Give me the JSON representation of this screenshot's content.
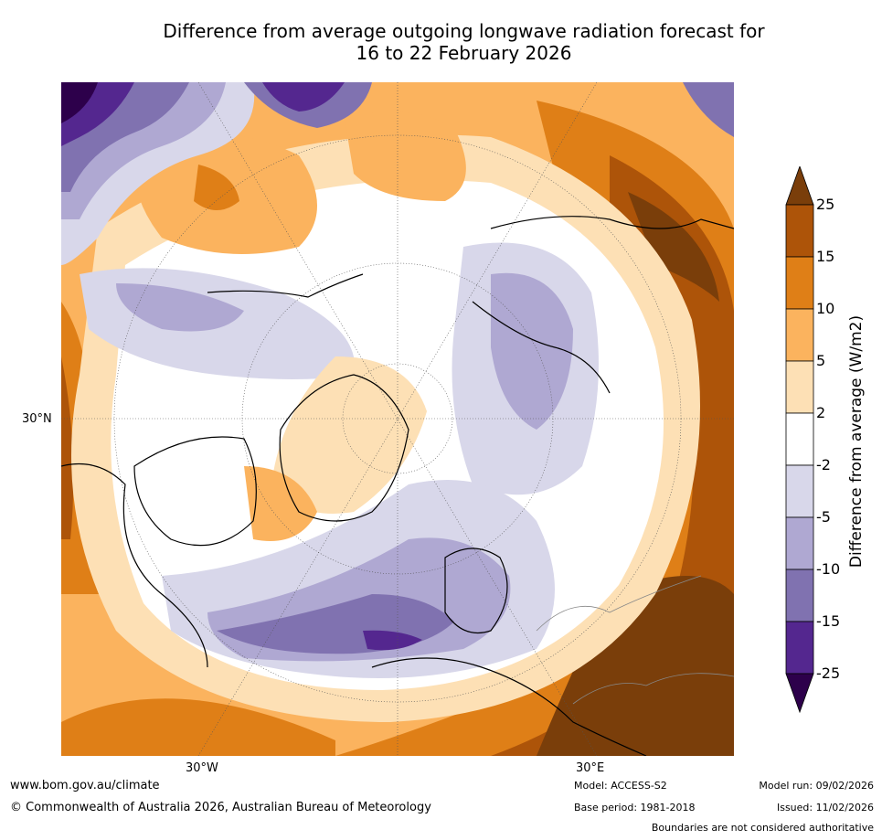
{
  "title": {
    "line1": "Difference from average outgoing longwave radiation forecast for",
    "line2": "16 to 22 February 2026"
  },
  "map": {
    "projection": "north polar stereographic",
    "lat_label": "30°N",
    "lon_labels": [
      "30°W",
      "30°E"
    ]
  },
  "colorbar": {
    "title": "Difference from average (W/m2)",
    "ticks": [
      "25",
      "15",
      "10",
      "5",
      "2",
      "-2",
      "-5",
      "-10",
      "-15",
      "-25"
    ],
    "colors": {
      "above_25": "#7a3e0a",
      "15_25": "#ad5409",
      "10_15": "#df7f17",
      "5_10": "#fbb35e",
      "2_5": "#fde0b5",
      "n2_2": "#ffffff",
      "n5_n2": "#d8d7ea",
      "n10_n5": "#afa8d2",
      "n15_n10": "#8072b0",
      "n25_n15": "#54278f",
      "below_n25": "#2d004b"
    }
  },
  "footer": {
    "website": "www.bom.gov.au/climate",
    "copyright": "© Commonwealth of Australia 2026, Australian Bureau of Meteorology",
    "model": "Model: ACCESS-S2",
    "base_period": "Base period: 1981-2018",
    "model_run": "Model run: 09/02/2026",
    "issued": "Issued: 11/02/2026",
    "disclaimer": "Boundaries are not considered authoritative"
  }
}
